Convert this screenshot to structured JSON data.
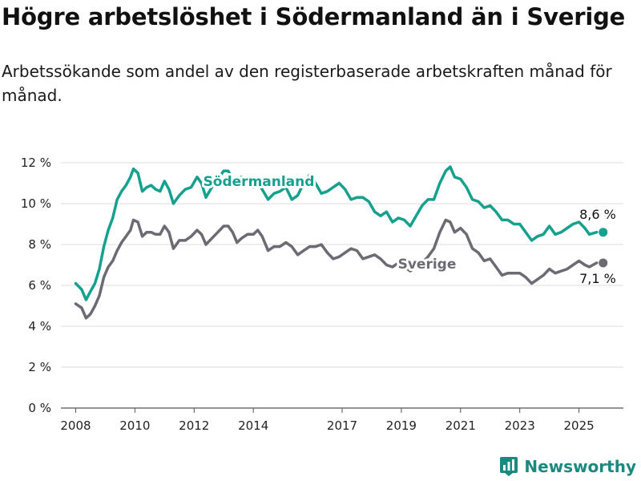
{
  "title": "Högre arbetslöshet i Södermanland än i Sverige",
  "subtitle": "Arbetssökande som andel av den registerbaserade arbetskraften månad för månad.",
  "brand": {
    "name": "Newsworthy",
    "icon": "newsworthy-logo-icon",
    "color": "#1a8a80"
  },
  "colors": {
    "sodermanland": "#16a08e",
    "sverige": "#6b6b73",
    "grid": "#dcdcdc"
  },
  "chart_data": {
    "type": "line",
    "xlim": [
      2007.5,
      2026.5
    ],
    "ylim": [
      0,
      12
    ],
    "y_ticks": [
      0,
      2,
      4,
      6,
      8,
      10,
      12
    ],
    "y_tick_labels": [
      "0 %",
      "2 %",
      "4 %",
      "6 %",
      "8 %",
      "10 %",
      "12 %"
    ],
    "x_ticks": [
      2008,
      2010,
      2012,
      2014,
      2017,
      2019,
      2021,
      2023,
      2025
    ],
    "x_tick_labels": [
      "2008",
      "2010",
      "2012",
      "2014",
      "2017",
      "2019",
      "2021",
      "2023",
      "2025"
    ],
    "grid": "horizontal",
    "series": [
      {
        "name": "Södermanland",
        "end_label": "8,6 %",
        "points": [
          [
            2008.0,
            6.1
          ],
          [
            2008.2,
            5.8
          ],
          [
            2008.35,
            5.3
          ],
          [
            2008.5,
            5.7
          ],
          [
            2008.65,
            6.1
          ],
          [
            2008.8,
            6.8
          ],
          [
            2008.95,
            7.9
          ],
          [
            2009.1,
            8.7
          ],
          [
            2009.25,
            9.3
          ],
          [
            2009.4,
            10.2
          ],
          [
            2009.55,
            10.6
          ],
          [
            2009.7,
            10.9
          ],
          [
            2009.85,
            11.3
          ],
          [
            2009.95,
            11.7
          ],
          [
            2010.1,
            11.5
          ],
          [
            2010.25,
            10.6
          ],
          [
            2010.4,
            10.8
          ],
          [
            2010.55,
            10.9
          ],
          [
            2010.7,
            10.7
          ],
          [
            2010.85,
            10.6
          ],
          [
            2011.0,
            11.1
          ],
          [
            2011.15,
            10.7
          ],
          [
            2011.3,
            10.0
          ],
          [
            2011.5,
            10.4
          ],
          [
            2011.7,
            10.7
          ],
          [
            2011.9,
            10.8
          ],
          [
            2012.1,
            11.3
          ],
          [
            2012.25,
            11.0
          ],
          [
            2012.4,
            10.3
          ],
          [
            2012.6,
            10.8
          ],
          [
            2012.8,
            11.2
          ],
          [
            2013.0,
            11.6
          ],
          [
            2013.15,
            11.6
          ],
          [
            2013.3,
            11.2
          ],
          [
            2013.45,
            10.8
          ],
          [
            2013.6,
            11.3
          ],
          [
            2013.8,
            11.0
          ],
          [
            2014.0,
            10.8
          ],
          [
            2014.15,
            11.0
          ],
          [
            2014.3,
            10.7
          ],
          [
            2014.5,
            10.2
          ],
          [
            2014.7,
            10.5
          ],
          [
            2014.9,
            10.6
          ],
          [
            2015.1,
            10.8
          ],
          [
            2015.3,
            10.2
          ],
          [
            2015.5,
            10.4
          ],
          [
            2015.7,
            11.0
          ],
          [
            2015.9,
            11.4
          ],
          [
            2016.1,
            11.0
          ],
          [
            2016.3,
            10.5
          ],
          [
            2016.5,
            10.6
          ],
          [
            2016.7,
            10.8
          ],
          [
            2016.9,
            11.0
          ],
          [
            2017.1,
            10.7
          ],
          [
            2017.3,
            10.2
          ],
          [
            2017.5,
            10.3
          ],
          [
            2017.7,
            10.3
          ],
          [
            2017.9,
            10.1
          ],
          [
            2018.1,
            9.6
          ],
          [
            2018.3,
            9.4
          ],
          [
            2018.5,
            9.6
          ],
          [
            2018.7,
            9.1
          ],
          [
            2018.9,
            9.3
          ],
          [
            2019.1,
            9.2
          ],
          [
            2019.3,
            8.9
          ],
          [
            2019.5,
            9.4
          ],
          [
            2019.7,
            9.9
          ],
          [
            2019.9,
            10.2
          ],
          [
            2020.1,
            10.2
          ],
          [
            2020.3,
            11.0
          ],
          [
            2020.5,
            11.6
          ],
          [
            2020.65,
            11.8
          ],
          [
            2020.8,
            11.3
          ],
          [
            2021.0,
            11.2
          ],
          [
            2021.2,
            10.8
          ],
          [
            2021.4,
            10.2
          ],
          [
            2021.6,
            10.1
          ],
          [
            2021.8,
            9.8
          ],
          [
            2022.0,
            9.9
          ],
          [
            2022.2,
            9.6
          ],
          [
            2022.4,
            9.2
          ],
          [
            2022.6,
            9.2
          ],
          [
            2022.8,
            9.0
          ],
          [
            2023.0,
            9.0
          ],
          [
            2023.2,
            8.6
          ],
          [
            2023.4,
            8.2
          ],
          [
            2023.6,
            8.4
          ],
          [
            2023.8,
            8.5
          ],
          [
            2024.0,
            8.9
          ],
          [
            2024.2,
            8.5
          ],
          [
            2024.4,
            8.6
          ],
          [
            2024.6,
            8.8
          ],
          [
            2024.8,
            9.0
          ],
          [
            2025.0,
            9.1
          ],
          [
            2025.2,
            8.8
          ],
          [
            2025.35,
            8.5
          ],
          [
            2025.6,
            8.6
          ]
        ]
      },
      {
        "name": "Sverige",
        "end_label": "7,1 %",
        "points": [
          [
            2008.0,
            5.1
          ],
          [
            2008.2,
            4.9
          ],
          [
            2008.35,
            4.4
          ],
          [
            2008.5,
            4.6
          ],
          [
            2008.65,
            5.0
          ],
          [
            2008.8,
            5.5
          ],
          [
            2008.95,
            6.4
          ],
          [
            2009.1,
            6.9
          ],
          [
            2009.25,
            7.2
          ],
          [
            2009.4,
            7.7
          ],
          [
            2009.55,
            8.1
          ],
          [
            2009.7,
            8.4
          ],
          [
            2009.85,
            8.7
          ],
          [
            2009.95,
            9.2
          ],
          [
            2010.1,
            9.1
          ],
          [
            2010.25,
            8.4
          ],
          [
            2010.4,
            8.6
          ],
          [
            2010.55,
            8.6
          ],
          [
            2010.7,
            8.5
          ],
          [
            2010.85,
            8.5
          ],
          [
            2011.0,
            8.9
          ],
          [
            2011.15,
            8.6
          ],
          [
            2011.3,
            7.8
          ],
          [
            2011.5,
            8.2
          ],
          [
            2011.7,
            8.2
          ],
          [
            2011.9,
            8.4
          ],
          [
            2012.1,
            8.7
          ],
          [
            2012.25,
            8.5
          ],
          [
            2012.4,
            8.0
          ],
          [
            2012.6,
            8.3
          ],
          [
            2012.8,
            8.6
          ],
          [
            2013.0,
            8.9
          ],
          [
            2013.15,
            8.9
          ],
          [
            2013.3,
            8.6
          ],
          [
            2013.45,
            8.1
          ],
          [
            2013.6,
            8.3
          ],
          [
            2013.8,
            8.5
          ],
          [
            2014.0,
            8.5
          ],
          [
            2014.15,
            8.7
          ],
          [
            2014.3,
            8.4
          ],
          [
            2014.5,
            7.7
          ],
          [
            2014.7,
            7.9
          ],
          [
            2014.9,
            7.9
          ],
          [
            2015.1,
            8.1
          ],
          [
            2015.3,
            7.9
          ],
          [
            2015.5,
            7.5
          ],
          [
            2015.7,
            7.7
          ],
          [
            2015.9,
            7.9
          ],
          [
            2016.1,
            7.9
          ],
          [
            2016.3,
            8.0
          ],
          [
            2016.5,
            7.6
          ],
          [
            2016.7,
            7.3
          ],
          [
            2016.9,
            7.4
          ],
          [
            2017.1,
            7.6
          ],
          [
            2017.3,
            7.8
          ],
          [
            2017.5,
            7.7
          ],
          [
            2017.7,
            7.3
          ],
          [
            2017.9,
            7.4
          ],
          [
            2018.1,
            7.5
          ],
          [
            2018.3,
            7.3
          ],
          [
            2018.5,
            7.0
          ],
          [
            2018.7,
            6.9
          ],
          [
            2018.9,
            7.1
          ],
          [
            2019.1,
            6.9
          ],
          [
            2019.3,
            6.7
          ],
          [
            2019.5,
            6.9
          ],
          [
            2019.7,
            7.1
          ],
          [
            2019.9,
            7.4
          ],
          [
            2020.1,
            7.8
          ],
          [
            2020.3,
            8.6
          ],
          [
            2020.5,
            9.2
          ],
          [
            2020.65,
            9.1
          ],
          [
            2020.8,
            8.6
          ],
          [
            2021.0,
            8.8
          ],
          [
            2021.2,
            8.5
          ],
          [
            2021.4,
            7.8
          ],
          [
            2021.6,
            7.6
          ],
          [
            2021.8,
            7.2
          ],
          [
            2022.0,
            7.3
          ],
          [
            2022.2,
            6.9
          ],
          [
            2022.4,
            6.5
          ],
          [
            2022.6,
            6.6
          ],
          [
            2022.8,
            6.6
          ],
          [
            2023.0,
            6.6
          ],
          [
            2023.2,
            6.4
          ],
          [
            2023.4,
            6.1
          ],
          [
            2023.6,
            6.3
          ],
          [
            2023.8,
            6.5
          ],
          [
            2024.0,
            6.8
          ],
          [
            2024.2,
            6.6
          ],
          [
            2024.4,
            6.7
          ],
          [
            2024.6,
            6.8
          ],
          [
            2024.8,
            7.0
          ],
          [
            2025.0,
            7.2
          ],
          [
            2025.2,
            7.0
          ],
          [
            2025.35,
            6.9
          ],
          [
            2025.6,
            7.1
          ]
        ]
      }
    ]
  }
}
